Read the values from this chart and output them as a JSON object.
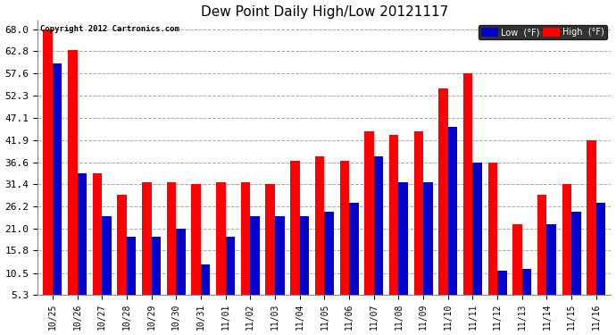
{
  "title": "Dew Point Daily High/Low 20121117",
  "copyright": "Copyright 2012 Cartronics.com",
  "dates": [
    "10/25",
    "10/26",
    "10/27",
    "10/28",
    "10/29",
    "10/30",
    "10/31",
    "11/01",
    "11/02",
    "11/03",
    "11/04",
    "11/05",
    "11/06",
    "11/07",
    "11/08",
    "11/09",
    "11/10",
    "11/11",
    "11/12",
    "11/13",
    "11/14",
    "11/15",
    "11/16"
  ],
  "high_values": [
    68.0,
    63.0,
    34.0,
    29.0,
    32.0,
    32.0,
    31.4,
    32.0,
    32.0,
    31.4,
    37.0,
    38.0,
    37.0,
    44.0,
    43.0,
    44.0,
    54.0,
    57.6,
    36.6,
    22.0,
    29.0,
    31.4,
    41.9
  ],
  "low_values": [
    60.0,
    34.0,
    24.0,
    19.0,
    19.0,
    21.0,
    12.5,
    19.0,
    24.0,
    24.0,
    24.0,
    25.0,
    27.0,
    38.0,
    32.0,
    32.0,
    45.0,
    36.6,
    11.0,
    11.5,
    22.0,
    25.0,
    27.0
  ],
  "high_color": "#ff0000",
  "low_color": "#0000cc",
  "bg_color": "#ffffff",
  "plot_bg_color": "#ffffff",
  "grid_color": "#aaaaaa",
  "yticks": [
    5.3,
    10.5,
    15.8,
    21.0,
    26.2,
    31.4,
    36.6,
    41.9,
    47.1,
    52.3,
    57.6,
    62.8,
    68.0
  ],
  "ymin": 5.3,
  "ymax": 70.0,
  "bar_width": 0.38
}
